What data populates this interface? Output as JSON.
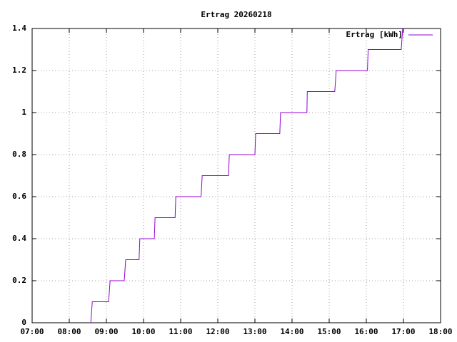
{
  "chart_data": {
    "type": "line",
    "title": "Ertrag 20260218",
    "series": [
      {
        "name": "Ertrag [kWh]",
        "color": "#9400d3",
        "x": [
          8.58,
          8.62,
          9.06,
          9.1,
          9.48,
          9.52,
          9.88,
          9.9,
          10.29,
          10.31,
          10.85,
          10.87,
          11.55,
          11.58,
          12.29,
          12.31,
          13.0,
          13.02,
          13.67,
          13.69,
          14.4,
          14.41,
          15.15,
          15.19,
          16.03,
          16.05,
          16.94,
          16.98,
          17.02
        ],
        "values": [
          0,
          0.1,
          0.1,
          0.2,
          0.2,
          0.3,
          0.3,
          0.4,
          0.4,
          0.5,
          0.5,
          0.6,
          0.6,
          0.7,
          0.7,
          0.8,
          0.8,
          0.9,
          0.9,
          1.0,
          1.0,
          1.1,
          1.1,
          1.2,
          1.2,
          1.3,
          1.3,
          1.4,
          1.4
        ]
      }
    ],
    "xlim": [
      7,
      18
    ],
    "xticks": [
      {
        "value": 7,
        "label": "07:00"
      },
      {
        "value": 8,
        "label": "08:00"
      },
      {
        "value": 9,
        "label": "09:00"
      },
      {
        "value": 10,
        "label": "10:00"
      },
      {
        "value": 11,
        "label": "11:00"
      },
      {
        "value": 12,
        "label": "12:00"
      },
      {
        "value": 13,
        "label": "13:00"
      },
      {
        "value": 14,
        "label": "14:00"
      },
      {
        "value": 15,
        "label": "15:00"
      },
      {
        "value": 16,
        "label": "16:00"
      },
      {
        "value": 17,
        "label": "17:00"
      },
      {
        "value": 18,
        "label": "18:00"
      }
    ],
    "ylim": [
      0,
      1.4
    ],
    "yticks": [
      0,
      0.2,
      0.4,
      0.6,
      0.8,
      1,
      1.2,
      1.4
    ],
    "grid": true,
    "legend": "top-right"
  }
}
